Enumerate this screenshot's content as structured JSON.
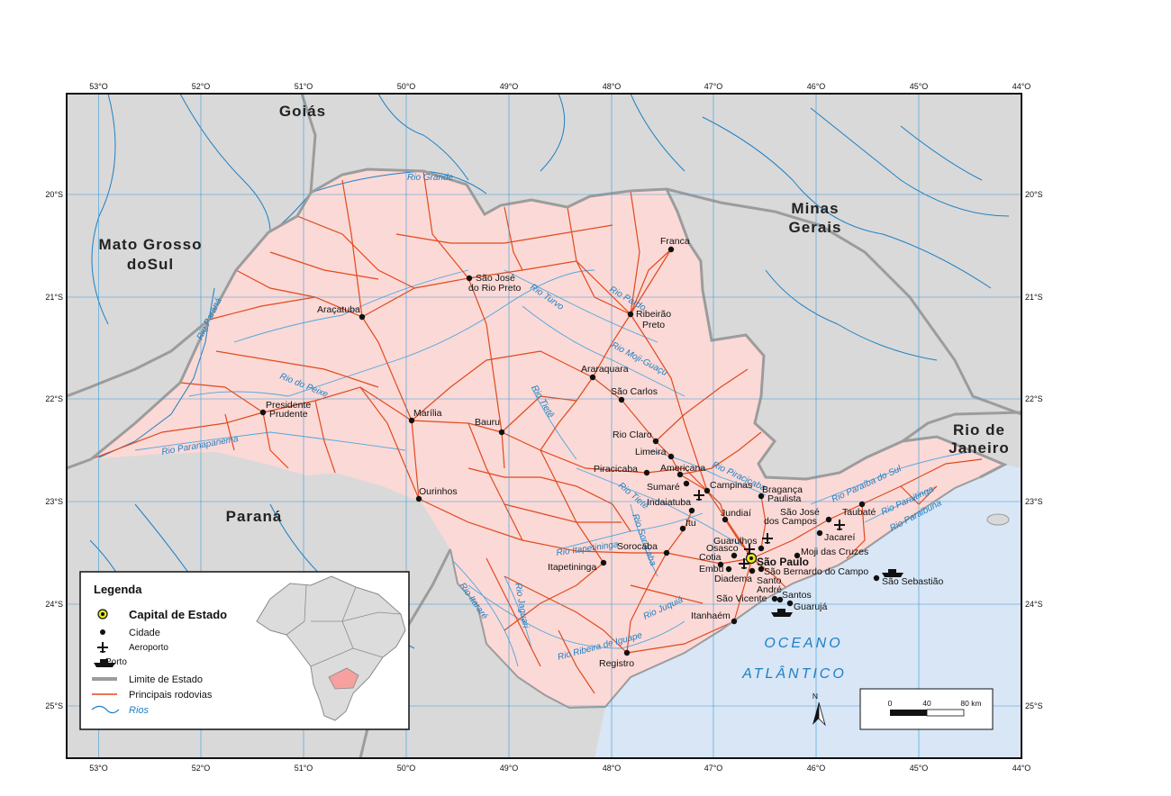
{
  "map": {
    "lon_labels": [
      "53°O",
      "52°O",
      "51°O",
      "50°O",
      "49°O",
      "48°O",
      "47°O",
      "46°O",
      "45°O",
      "44°O"
    ],
    "lat_labels": [
      "20°S",
      "21°S",
      "22°S",
      "23°S",
      "24°S",
      "25°S"
    ],
    "neighbors": {
      "goias": "Goiás",
      "ms_line1": "Mato Grosso",
      "ms_line2": "doSul",
      "mg_line1": "Minas",
      "mg_line2": "Gerais",
      "rj_line1": "Rio de",
      "rj_line2": "Janeiro",
      "parana": "Paraná"
    },
    "ocean_line1": "OCEANO",
    "ocean_line2": "ATLÂNTICO",
    "capital": "São Paulo",
    "cities": [
      "Franca",
      "São José",
      "do Rio Preto",
      "Ribeirão",
      "Preto",
      "Araçatuba",
      "Araraquara",
      "São Carlos",
      "Presidente",
      "Prudente",
      "Marília",
      "Bauru",
      "Rio Claro",
      "Limeira",
      "Americana",
      "Piracicaba",
      "Sumaré",
      "Campinas",
      "Bragança",
      "Paulista",
      "Indaiatuba",
      "Jundiaí",
      "Itu",
      "São José",
      "dos Campos",
      "Taubaté",
      "Jacareí",
      "Guarulhos",
      "Osasco",
      "Cotia",
      "Embu",
      "Diadema",
      "Santo",
      "André",
      "Moji das Cruzes",
      "São Bernardo do Campo",
      "São Vicente",
      "Santos",
      "Guarujá",
      "São Sebastião",
      "Sorocaba",
      "Itapetininga",
      "Ourinhos",
      "Itanhaém",
      "Registro"
    ],
    "rivers": [
      "Rio Grande",
      "Rio Paraná",
      "Rio Turvo",
      "Rio Pardo",
      "Rio Moji-Guaçu",
      "Rio do Peixe",
      "Rio Tietê",
      "Rio Paranapanema",
      "Rio Piracicaba",
      "Rio Tietê",
      "Rio Sorocaba",
      "Rio Itapetininga",
      "Rio Juquiá",
      "Rio Ribeira de Iguape",
      "Rio Paraíba do Sul",
      "Rio Paraitinga",
      "Rio Paraibuna",
      "Rio Itararé",
      "Rio Jaguari"
    ],
    "north": "N",
    "scale": {
      "t0": "0",
      "t1": "40",
      "t2": "80 km"
    }
  },
  "legend": {
    "title": "Legenda",
    "capital": "Capital de Estado",
    "city": "Cidade",
    "airport": "Aeroporto",
    "port": "Porto",
    "state_limit": "Limite de Estado",
    "roads": "Principais rodovias",
    "rivers": "Rios"
  },
  "colors": {
    "sp_fill": "#fbd9d6",
    "neighbor_fill": "#d9d9d9",
    "ocean": "#d8e6f6",
    "road": "#e04a1d",
    "river": "#1d7fc4",
    "grid": "#3a9ad9",
    "border": "#9c9c9c"
  }
}
